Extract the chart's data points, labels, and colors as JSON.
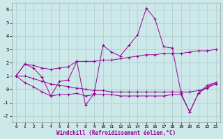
{
  "xlabel": "Windchill (Refroidissement éolien,°C)",
  "background_color": "#cce8e8",
  "grid_color": "#aacccc",
  "line_color": "#990099",
  "xlim": [
    -0.5,
    23.5
  ],
  "ylim": [
    -2.5,
    6.5
  ],
  "yticks": [
    -2,
    -1,
    0,
    1,
    2,
    3,
    4,
    5,
    6
  ],
  "xticks": [
    0,
    1,
    2,
    3,
    4,
    5,
    6,
    7,
    8,
    9,
    10,
    11,
    12,
    13,
    14,
    15,
    16,
    17,
    18,
    19,
    20,
    21,
    22,
    23
  ],
  "lines": [
    {
      "x": [
        0,
        1,
        2,
        3,
        4,
        5,
        6,
        7,
        8,
        9,
        10,
        11,
        12,
        13,
        14,
        15,
        16,
        17,
        18,
        19,
        20,
        21,
        22,
        23
      ],
      "y": [
        1.0,
        1.9,
        1.8,
        1.6,
        1.5,
        1.6,
        1.7,
        2.1,
        2.1,
        2.1,
        2.2,
        2.2,
        2.3,
        2.4,
        2.5,
        2.6,
        2.6,
        2.7,
        2.7,
        2.7,
        2.8,
        2.9,
        2.9,
        3.0
      ]
    },
    {
      "x": [
        0,
        1,
        2,
        3,
        4,
        5,
        6,
        7,
        8,
        9,
        10,
        11,
        12,
        13,
        14,
        15,
        16,
        17,
        18,
        19,
        20,
        21,
        22,
        23
      ],
      "y": [
        1.0,
        1.9,
        1.6,
        0.9,
        -0.5,
        0.6,
        0.7,
        2.1,
        -1.2,
        -0.3,
        3.3,
        2.8,
        2.5,
        3.3,
        4.1,
        6.1,
        5.3,
        3.2,
        3.1,
        -0.3,
        -1.7,
        -0.3,
        0.3,
        0.5
      ]
    },
    {
      "x": [
        0,
        1,
        2,
        3,
        4,
        5,
        6,
        7,
        8,
        9,
        10,
        11,
        12,
        13,
        14,
        15,
        16,
        17,
        18,
        19,
        20,
        21,
        22,
        23
      ],
      "y": [
        1.0,
        1.0,
        0.8,
        0.6,
        0.4,
        0.3,
        0.2,
        0.1,
        0.0,
        -0.1,
        -0.1,
        -0.2,
        -0.2,
        -0.2,
        -0.2,
        -0.2,
        -0.2,
        -0.2,
        -0.2,
        -0.2,
        -0.2,
        -0.1,
        0.1,
        0.4
      ]
    },
    {
      "x": [
        0,
        1,
        2,
        3,
        4,
        5,
        6,
        7,
        8,
        9,
        10,
        11,
        12,
        13,
        14,
        15,
        16,
        17,
        18,
        19,
        20,
        21,
        22,
        23
      ],
      "y": [
        1.0,
        0.5,
        0.2,
        -0.2,
        -0.5,
        -0.4,
        -0.4,
        -0.3,
        -0.5,
        -0.4,
        -0.4,
        -0.4,
        -0.5,
        -0.5,
        -0.5,
        -0.5,
        -0.5,
        -0.5,
        -0.4,
        -0.4,
        -1.7,
        -0.3,
        0.15,
        0.5
      ]
    }
  ]
}
